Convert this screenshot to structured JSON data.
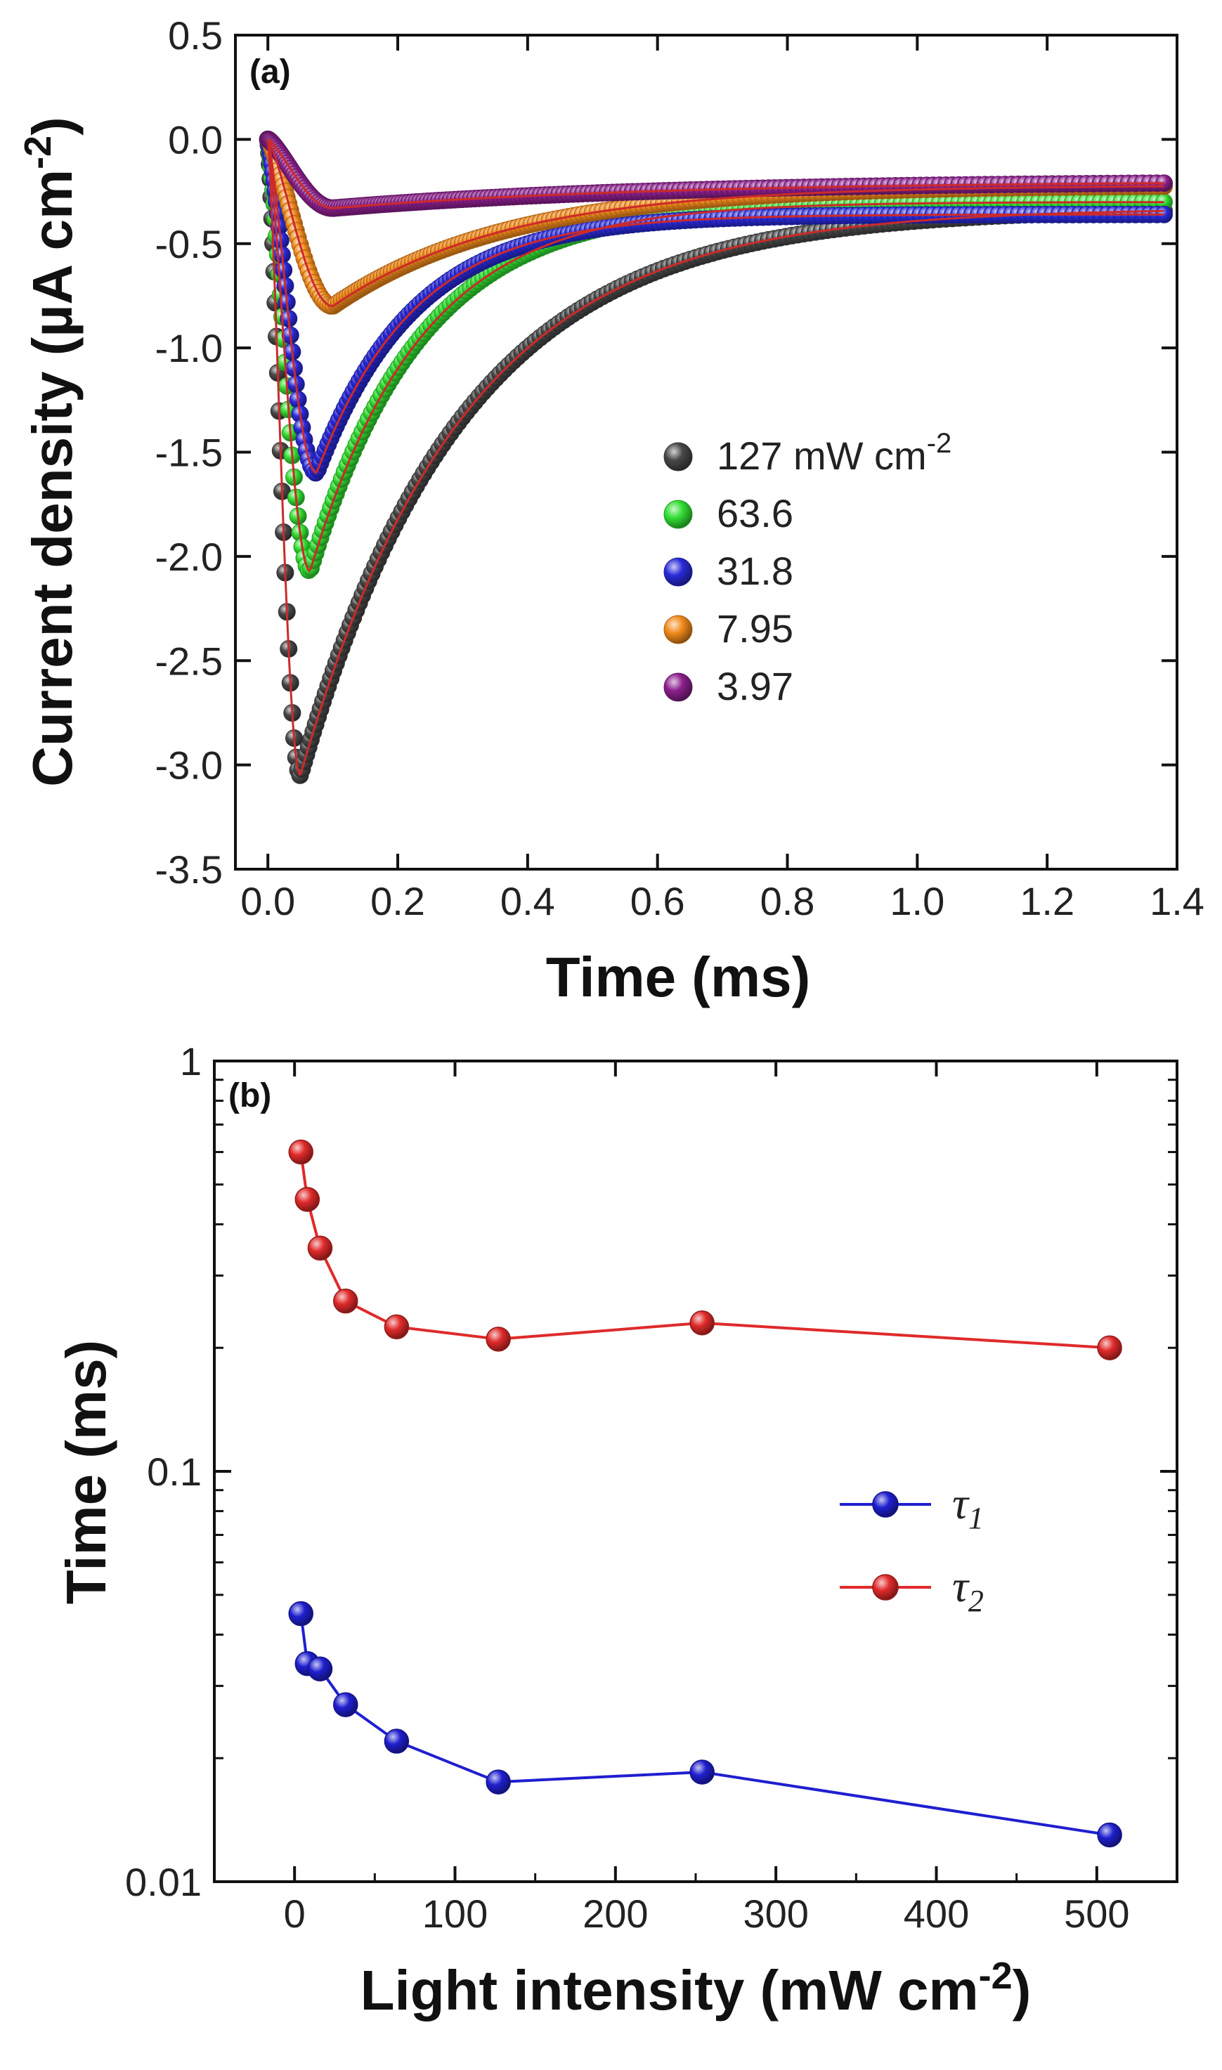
{
  "chart_data": [
    {
      "type": "scatter",
      "panel_label": "(a)",
      "xlabel": "Time (ms)",
      "ylabel": "Current density (µA cm",
      "ylabel_sup": "-2",
      "ylabel_close": ")",
      "xlim": [
        -0.05,
        1.4
      ],
      "ylim": [
        -3.5,
        0.5
      ],
      "xticks": [
        0.0,
        0.2,
        0.4,
        0.6,
        0.8,
        1.0,
        1.2,
        1.4
      ],
      "xtick_labels": [
        "0.0",
        "0.2",
        "0.4",
        "0.6",
        "0.8",
        "1.0",
        "1.2",
        "1.4"
      ],
      "yticks": [
        -3.5,
        -3.0,
        -2.5,
        -2.0,
        -1.5,
        -1.0,
        -0.5,
        0.0,
        0.5
      ],
      "ytick_labels": [
        "-3.5",
        "-3.0",
        "-2.5",
        "-2.0",
        "-1.5",
        "-1.0",
        "-0.5",
        "0.0",
        "0.5"
      ],
      "grid": false,
      "legend_position": "right",
      "fit_line_color": "#cc2a2a",
      "series": [
        {
          "name": "127 mW cm",
          "name_sup": "-2",
          "color": "#474747",
          "tpeak": 0.05,
          "peak": -3.05,
          "steady": -0.33,
          "tau": 0.25
        },
        {
          "name": "63.6",
          "color": "#33dd33",
          "tpeak": 0.065,
          "peak": -2.07,
          "steady": -0.3,
          "tau": 0.17
        },
        {
          "name": "31.8",
          "color": "#2a2ad8",
          "tpeak": 0.075,
          "peak": -1.6,
          "steady": -0.36,
          "tau": 0.15
        },
        {
          "name": "7.95",
          "color": "#f28a1c",
          "tpeak": 0.1,
          "peak": -0.8,
          "steady": -0.22,
          "tau": 0.27
        },
        {
          "name": "3.97",
          "color": "#8b1f8c",
          "tpeak": 0.1,
          "peak": -0.33,
          "steady": -0.2,
          "tau": 0.5
        }
      ]
    },
    {
      "type": "line",
      "panel_label": "(b)",
      "xlabel": "Light intensity (mW cm",
      "xlabel_sup": "-2",
      "xlabel_close": ")",
      "ylabel": "Time (ms)",
      "yscale": "log",
      "xlim": [
        -50,
        550
      ],
      "ylim": [
        0.01,
        1
      ],
      "xticks": [
        0,
        100,
        200,
        300,
        400,
        500
      ],
      "xtick_labels": [
        "0",
        "100",
        "200",
        "300",
        "400",
        "500"
      ],
      "yticks": [
        0.01,
        0.1,
        1
      ],
      "ytick_labels": [
        "0.01",
        "0.1",
        "1"
      ],
      "grid": false,
      "legend_position": "center-right",
      "x": [
        3.97,
        7.95,
        15.9,
        31.8,
        63.6,
        127,
        254,
        508
      ],
      "series": [
        {
          "name": "τ",
          "name_sub": "1",
          "color": "#1f1fd0",
          "values": [
            0.045,
            0.034,
            0.033,
            0.027,
            0.022,
            0.0175,
            0.0185,
            0.013
          ]
        },
        {
          "name": "τ",
          "name_sub": "2",
          "color": "#e02a2a",
          "values": [
            0.6,
            0.46,
            0.35,
            0.26,
            0.225,
            0.21,
            0.23,
            0.2
          ]
        }
      ]
    }
  ]
}
